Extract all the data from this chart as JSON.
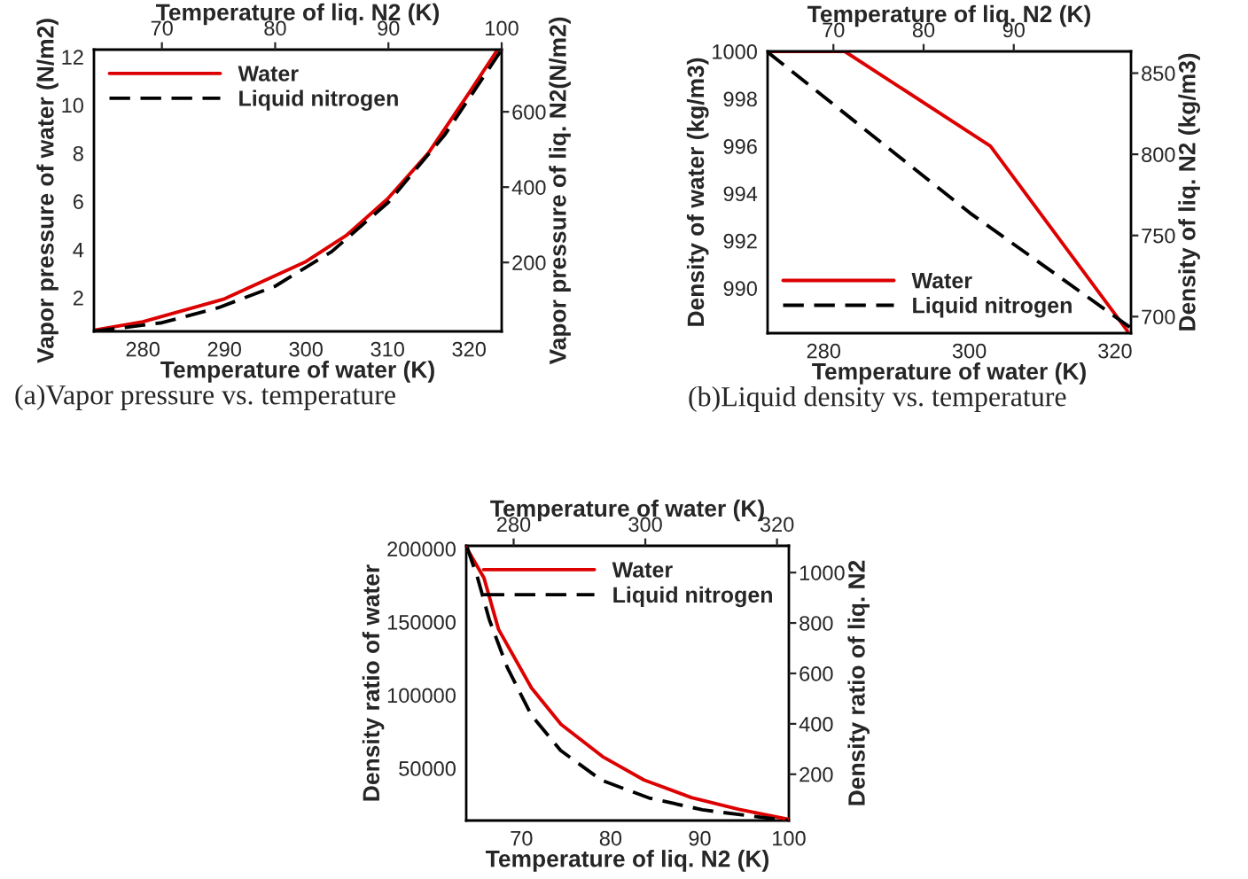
{
  "chart_data": [
    {
      "type": "line",
      "xlabel": "Temperature of water (K)",
      "ylabel": "Vapor pressure of water (N/m2)",
      "xlim": [
        274,
        324
      ],
      "xticks": [
        280,
        290,
        300,
        310,
        320
      ],
      "ylim": [
        0.6,
        12.3
      ],
      "yticks": [
        2,
        4,
        6,
        8,
        10,
        12
      ],
      "legend": "top left",
      "grid": false,
      "annotations": [
        "(a)Vapor pressure vs. temperature"
      ],
      "series": [
        {
          "name": "Water",
          "color": "#dd0000",
          "line_style": "solid",
          "x": [
            274,
            280,
            290,
            300,
            305,
            310,
            315,
            320,
            323.5
          ],
          "values": [
            0.65,
            1.0,
            1.95,
            3.5,
            4.6,
            6.1,
            8.0,
            10.5,
            12.3
          ]
        }
      ]
    },
    {
      "type": "line",
      "xlabel": "Temperature of liq. N2 (K)",
      "ylabel": "Vapor pressure of liq. N2(N/m2)",
      "xlim": [
        64,
        100
      ],
      "xticks": [
        70,
        80,
        90,
        100
      ],
      "ylim": [
        17,
        765
      ],
      "yticks": [
        200,
        400,
        600
      ],
      "legend": "top left",
      "grid": false,
      "series": [
        {
          "name": "Liquid nitrogen",
          "color": "#000000",
          "line_style": "dashed",
          "x": [
            64,
            70,
            75,
            80,
            85,
            90,
            95,
            100
          ],
          "values": [
            17,
            40,
            80,
            137,
            229,
            360,
            540,
            765
          ]
        }
      ]
    },
    {
      "type": "line",
      "xlabel": "Temperature of water (K)",
      "ylabel": "Density of water (kg/m3)",
      "xlim": [
        272.3,
        322.2
      ],
      "xticks": [
        280,
        300,
        320
      ],
      "ylim": [
        988.1,
        1000
      ],
      "yticks": [
        990,
        992,
        994,
        996,
        998,
        1000
      ],
      "legend": "bottom left",
      "grid": false,
      "annotations": [
        "(b)Liquid density vs. temperature"
      ],
      "series": [
        {
          "name": "Water",
          "color": "#dd0000",
          "line_style": "solid",
          "x": [
            272.3,
            282.9,
            302.9,
            321.7
          ],
          "values": [
            1000,
            1000,
            996,
            988.2
          ]
        }
      ]
    },
    {
      "type": "line",
      "xlabel": "Temperature of liq. N2 (K)",
      "ylabel": "Density of liq. N2 (kg/m3)",
      "xlim": [
        62.7,
        103
      ],
      "xticks": [
        70,
        80,
        90
      ],
      "ylim": [
        689.8,
        863.4
      ],
      "yticks": [
        700,
        750,
        800,
        850
      ],
      "legend": "bottom left",
      "grid": false,
      "series": [
        {
          "name": "Liquid nitrogen",
          "color": "#000000",
          "line_style": "dashed",
          "x": [
            62.7,
            85.1,
            103
          ],
          "values": [
            863,
            764,
            693
          ]
        }
      ]
    },
    {
      "type": "line",
      "xlabel": "Temperature of liq. N2 (K)",
      "ylabel": "Density ratio of water",
      "x2label": "Temperature of water (K)",
      "y2label": "Density ratio of liq. N2",
      "xlim": [
        63.8,
        100
      ],
      "xticks": [
        70,
        80,
        90,
        100
      ],
      "ylim": [
        14300,
        202000
      ],
      "yticks": [
        50000,
        100000,
        150000,
        200000
      ],
      "x2lim": [
        272.8,
        321.8
      ],
      "x2ticks": [
        280,
        300,
        320
      ],
      "y2lim": [
        16.5,
        1106
      ],
      "y2ticks": [
        200,
        400,
        600,
        800,
        1000
      ],
      "legend": "top right",
      "grid": false,
      "series": [
        {
          "name": "Water",
          "color": "#dd0000",
          "line_style": "solid",
          "axis": "x2",
          "x": [
            272.8,
            275.5,
            277.7,
            282.7,
            287.2,
            293.5,
            299.8,
            307.0,
            314.2,
            321.8
          ],
          "values": [
            201000,
            180000,
            145000,
            105000,
            80000,
            58000,
            42000,
            30000,
            22000,
            15000
          ]
        },
        {
          "name": "Liquid nitrogen",
          "color": "#000000",
          "line_style": "dashed",
          "axis": "y2",
          "x": [
            63.9,
            65.1,
            66.4,
            68.4,
            71.1,
            74.4,
            79.0,
            84.3,
            90.3,
            95.6,
            99.9
          ],
          "values": [
            1100,
            976,
            812,
            624,
            435,
            294,
            176,
            106,
            59,
            35,
            17
          ]
        }
      ]
    }
  ]
}
